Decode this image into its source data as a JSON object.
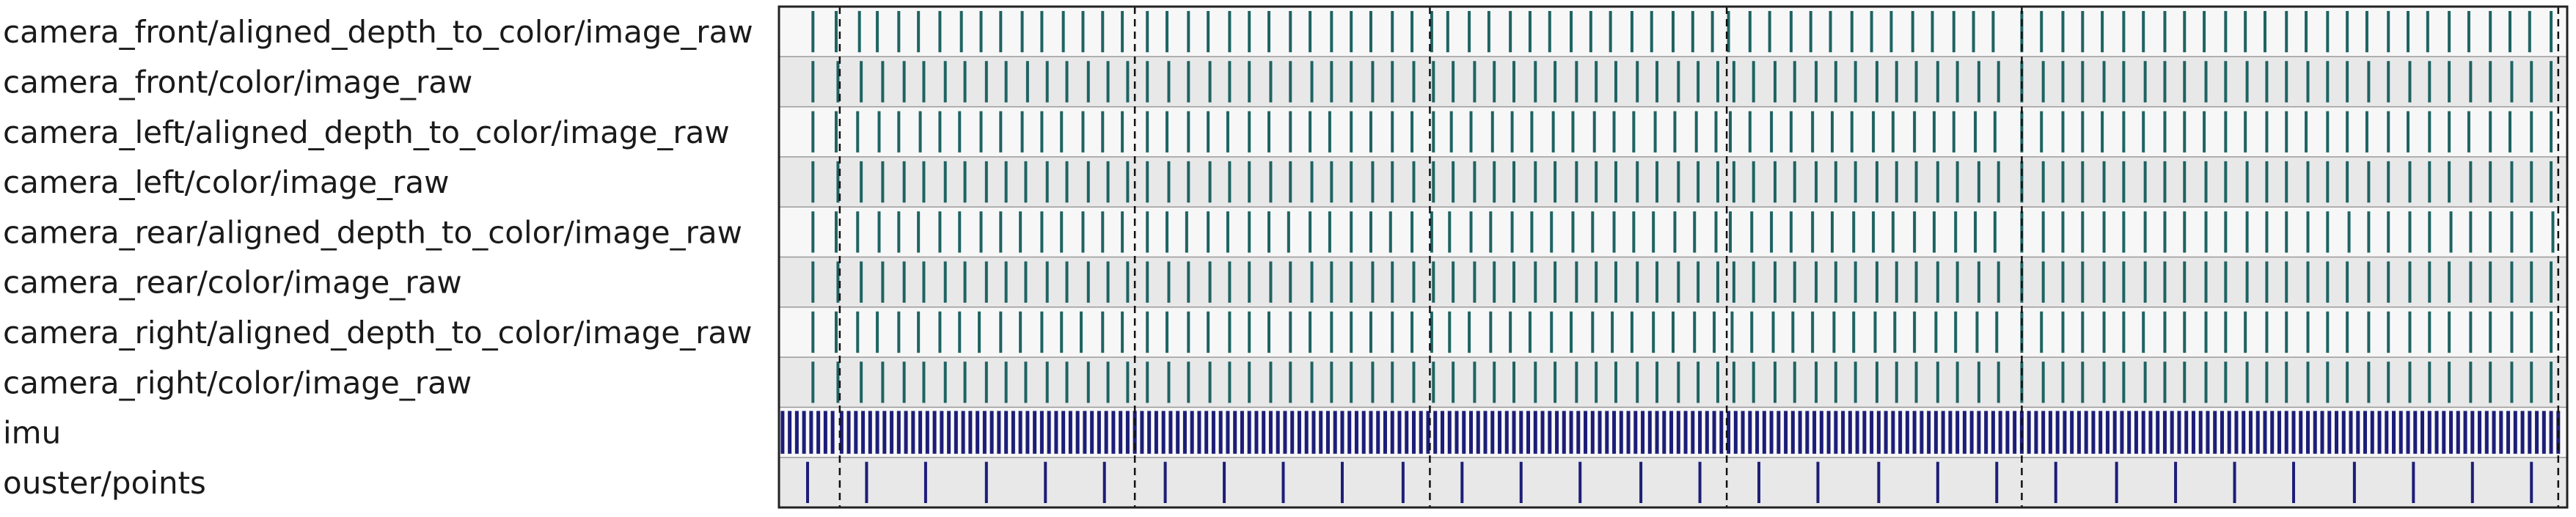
{
  "chart_data": {
    "type": "timeline",
    "title": "",
    "xlabel": "",
    "ylabel": "",
    "grid": false,
    "legend": "none",
    "colors": {
      "camera_ticks": "#1f6363",
      "imu_ticks": "#1d1d78",
      "ouster_ticks": "#1d1d78",
      "row_light": "#f7f7f7",
      "row_dark": "#e8e8e8",
      "divider": "#9a9a9a",
      "segment_line": "#111111",
      "frame": "#222222"
    },
    "x_range": [
      0,
      100
    ],
    "segment_boundaries": [
      3.4,
      19.9,
      36.4,
      53.0,
      69.5,
      99.5
    ],
    "rows": [
      {
        "label": "camera_front/aligned_depth_to_color/image_raw",
        "events": [
          1.9,
          3.2,
          4.5,
          5.5,
          6.7,
          7.8,
          9.0,
          10.2,
          11.3,
          12.4,
          13.6,
          14.7,
          15.9,
          17.0,
          18.1,
          19.2,
          20.6,
          21.7,
          22.9,
          24.0,
          25.2,
          26.3,
          27.4,
          28.6,
          29.7,
          30.9,
          32.0,
          33.1,
          34.3,
          35.4,
          36.5,
          37.4,
          38.6,
          39.7,
          40.9,
          42.0,
          43.1,
          44.3,
          45.4,
          46.5,
          47.7,
          48.8,
          50.0,
          51.1,
          52.2,
          53.1,
          54.3,
          55.4,
          56.6,
          57.7,
          58.8,
          60.0,
          61.1,
          62.2,
          63.4,
          64.5,
          65.7,
          66.8,
          67.9,
          69.5,
          70.6,
          71.8,
          72.9,
          74.0,
          75.2,
          76.3,
          77.5,
          78.6,
          79.7,
          80.9,
          82.0,
          83.1,
          84.3,
          85.4,
          86.6,
          87.7,
          88.8,
          90.0,
          91.1,
          92.2,
          93.4,
          94.5,
          95.7,
          96.8,
          97.9,
          99.1
        ]
      },
      {
        "label": "camera_front/color/image_raw",
        "events": [
          1.9,
          3.3,
          4.6,
          5.8,
          7.0,
          8.1,
          9.3,
          10.4,
          11.6,
          12.7,
          13.9,
          15.0,
          16.1,
          17.3,
          18.4,
          19.5,
          20.6,
          21.8,
          22.9,
          24.1,
          25.2,
          26.3,
          27.5,
          28.6,
          29.8,
          30.9,
          32.0,
          33.2,
          34.3,
          35.5,
          36.6,
          37.7,
          38.9,
          40.0,
          41.1,
          42.3,
          43.4,
          44.6,
          45.7,
          46.8,
          48.0,
          49.1,
          50.3,
          51.4,
          52.5,
          53.4,
          54.5,
          55.7,
          56.8,
          58.0,
          59.1,
          60.2,
          61.4,
          62.5,
          63.6,
          64.8,
          65.9,
          67.1,
          68.2,
          69.5,
          70.7,
          71.8,
          72.9,
          74.1,
          75.2,
          76.4,
          77.5,
          78.6,
          79.8,
          80.9,
          82.1,
          83.2,
          84.3,
          85.5,
          86.6,
          87.7,
          88.9,
          90.0,
          91.2,
          92.3,
          93.4,
          94.6,
          95.7,
          96.9,
          98.0,
          99.1
        ]
      },
      {
        "label": "camera_left/aligned_depth_to_color/image_raw",
        "events": [
          1.9,
          3.2,
          4.4,
          5.6,
          6.7,
          7.9,
          9.0,
          10.1,
          11.3,
          12.4,
          13.6,
          14.7,
          15.8,
          17.0,
          18.1,
          19.2,
          20.6,
          21.7,
          22.9,
          24.0,
          25.1,
          26.3,
          27.4,
          28.6,
          29.7,
          30.8,
          32.0,
          33.1,
          34.3,
          35.4,
          36.6,
          37.6,
          38.7,
          39.9,
          41.0,
          42.1,
          43.3,
          44.4,
          45.6,
          46.7,
          47.8,
          49.0,
          50.1,
          51.3,
          52.4,
          53.2,
          54.3,
          55.5,
          56.6,
          57.8,
          58.9,
          60.0,
          61.2,
          62.3,
          63.5,
          64.6,
          65.7,
          66.9,
          68.0,
          69.5,
          70.6,
          71.8,
          72.9,
          74.0,
          75.2,
          76.3,
          77.5,
          78.6,
          79.7,
          80.9,
          82.0,
          83.2,
          84.3,
          85.4,
          86.6,
          87.7,
          88.8,
          90.0,
          91.1,
          92.3,
          93.4,
          94.5,
          95.7,
          96.8,
          98.0,
          99.1
        ]
      },
      {
        "label": "camera_left/color/image_raw",
        "events": [
          1.9,
          3.3,
          4.6,
          5.8,
          7.0,
          8.1,
          9.3,
          10.4,
          11.6,
          12.7,
          13.8,
          15.0,
          16.1,
          17.3,
          18.4,
          19.5,
          20.6,
          21.8,
          22.9,
          24.1,
          25.2,
          26.3,
          27.5,
          28.6,
          29.8,
          30.9,
          32.0,
          33.2,
          34.3,
          35.5,
          36.6,
          37.7,
          38.9,
          40.0,
          41.1,
          42.3,
          43.4,
          44.6,
          45.7,
          46.8,
          48.0,
          49.1,
          50.3,
          51.4,
          52.5,
          53.4,
          54.5,
          55.7,
          56.8,
          58.0,
          59.1,
          60.2,
          61.4,
          62.5,
          63.6,
          64.8,
          65.9,
          67.1,
          68.2,
          69.5,
          70.7,
          71.8,
          72.9,
          74.1,
          75.2,
          76.4,
          77.5,
          78.6,
          79.8,
          80.9,
          82.1,
          83.2,
          84.3,
          85.5,
          86.6,
          87.7,
          88.9,
          90.0,
          91.2,
          92.3,
          93.4,
          94.6,
          95.7,
          96.9,
          98.0,
          99.1
        ]
      },
      {
        "label": "camera_rear/aligned_depth_to_color/image_raw",
        "events": [
          1.9,
          3.2,
          4.4,
          5.6,
          6.7,
          7.8,
          9.0,
          10.1,
          11.3,
          12.4,
          13.5,
          14.7,
          15.8,
          17.0,
          18.1,
          19.2,
          20.6,
          21.7,
          22.8,
          24.0,
          25.1,
          26.3,
          27.4,
          28.5,
          29.7,
          30.8,
          32.0,
          33.1,
          34.2,
          35.4,
          36.5,
          37.5,
          38.7,
          39.8,
          41.0,
          42.1,
          43.2,
          44.4,
          45.5,
          46.7,
          47.8,
          48.9,
          50.1,
          51.2,
          52.4,
          53.2,
          54.4,
          55.5,
          56.6,
          57.8,
          58.9,
          60.1,
          61.2,
          62.3,
          63.5,
          64.6,
          65.8,
          66.9,
          68.0,
          69.5,
          70.7,
          71.8,
          72.9,
          74.1,
          75.2,
          76.4,
          77.5,
          78.6,
          79.8,
          80.9,
          82.1,
          83.2,
          84.3,
          85.5,
          86.6,
          87.8,
          88.9,
          90.0,
          91.2,
          92.3,
          93.5,
          94.6,
          95.7,
          96.9,
          98.0,
          99.2
        ]
      },
      {
        "label": "camera_rear/color/image_raw",
        "events": [
          1.9,
          3.3,
          4.6,
          5.8,
          7.0,
          8.1,
          9.3,
          10.4,
          11.6,
          12.7,
          13.8,
          15.0,
          16.1,
          17.3,
          18.4,
          19.5,
          20.6,
          21.8,
          22.9,
          24.1,
          25.2,
          26.3,
          27.5,
          28.6,
          29.8,
          30.9,
          32.0,
          33.2,
          34.3,
          35.5,
          36.6,
          37.7,
          38.9,
          40.0,
          41.1,
          42.3,
          43.4,
          44.6,
          45.7,
          46.8,
          48.0,
          49.1,
          50.3,
          51.4,
          52.5,
          53.4,
          54.5,
          55.7,
          56.8,
          58.0,
          59.1,
          60.2,
          61.4,
          62.5,
          63.6,
          64.8,
          65.9,
          67.1,
          68.2,
          69.5,
          70.7,
          71.8,
          72.9,
          74.1,
          75.2,
          76.4,
          77.5,
          78.6,
          79.8,
          80.9,
          82.1,
          83.2,
          84.3,
          85.5,
          86.6,
          87.7,
          88.9,
          90.0,
          91.2,
          92.3,
          93.4,
          94.6,
          95.7,
          96.9,
          98.0,
          99.1
        ]
      },
      {
        "label": "camera_right/aligned_depth_to_color/image_raw",
        "events": [
          1.9,
          3.2,
          4.4,
          5.5,
          6.7,
          7.8,
          9.0,
          10.1,
          11.2,
          12.4,
          13.5,
          14.7,
          15.8,
          16.9,
          18.1,
          19.2,
          20.6,
          21.7,
          22.9,
          24.0,
          25.2,
          26.3,
          27.4,
          28.6,
          29.7,
          30.9,
          32.0,
          33.1,
          34.3,
          35.4,
          36.5,
          37.5,
          38.6,
          39.8,
          40.9,
          42.0,
          43.2,
          44.3,
          45.5,
          46.6,
          47.7,
          48.9,
          50.0,
          51.2,
          52.3,
          53.3,
          54.4,
          55.6,
          56.7,
          57.8,
          59.0,
          60.1,
          61.3,
          62.4,
          63.5,
          64.7,
          65.8,
          67.0,
          68.1,
          69.5,
          70.6,
          71.8,
          72.9,
          74.1,
          75.2,
          76.3,
          77.5,
          78.6,
          79.8,
          80.9,
          82.0,
          83.2,
          84.3,
          85.5,
          86.6,
          87.7,
          88.9,
          90.0,
          91.2,
          92.3,
          93.4,
          94.6,
          95.7,
          96.9,
          98.0,
          99.1
        ]
      },
      {
        "label": "camera_right/color/image_raw",
        "events": [
          1.9,
          3.3,
          4.6,
          5.8,
          7.0,
          8.1,
          9.3,
          10.4,
          11.6,
          12.7,
          13.8,
          15.0,
          16.1,
          17.3,
          18.4,
          19.5,
          20.6,
          21.8,
          22.9,
          24.1,
          25.2,
          26.3,
          27.5,
          28.6,
          29.8,
          30.9,
          32.0,
          33.2,
          34.3,
          35.5,
          36.6,
          37.7,
          38.9,
          40.0,
          41.1,
          42.3,
          43.4,
          44.6,
          45.7,
          46.8,
          48.0,
          49.1,
          50.3,
          51.4,
          52.5,
          53.4,
          54.5,
          55.7,
          56.8,
          58.0,
          59.1,
          60.2,
          61.4,
          62.5,
          63.6,
          64.8,
          65.9,
          67.1,
          68.2,
          69.5,
          70.7,
          71.8,
          72.9,
          74.1,
          75.2,
          76.4,
          77.5,
          78.6,
          79.8,
          80.9,
          82.1,
          83.2,
          84.3,
          85.5,
          86.6,
          87.7,
          88.9,
          90.0,
          91.2,
          92.3,
          93.4,
          94.6,
          95.7,
          96.9,
          98.0,
          99.1
        ]
      },
      {
        "label": "imu",
        "events": [
          0.2,
          0.6,
          1.0,
          1.4,
          1.8,
          2.2,
          2.6,
          3.0,
          3.5,
          3.9,
          4.3,
          4.7,
          5.1,
          5.5,
          5.9,
          6.3,
          6.7,
          7.1,
          7.5,
          7.9,
          8.3,
          8.7,
          9.1,
          9.5,
          9.9,
          10.3,
          10.7,
          11.1,
          11.5,
          11.9,
          12.3,
          12.7,
          13.1,
          13.5,
          13.9,
          14.3,
          14.7,
          15.1,
          15.5,
          15.9,
          16.3,
          16.7,
          17.1,
          17.5,
          17.9,
          18.3,
          18.7,
          19.1,
          19.5,
          19.9,
          20.3,
          20.7,
          21.1,
          21.5,
          21.9,
          22.3,
          22.7,
          23.1,
          23.5,
          23.9,
          24.3,
          24.7,
          25.1,
          25.5,
          25.9,
          26.3,
          26.7,
          27.1,
          27.5,
          27.9,
          28.3,
          28.7,
          29.1,
          29.5,
          29.9,
          30.3,
          30.7,
          31.1,
          31.5,
          31.9,
          32.3,
          32.7,
          33.1,
          33.5,
          33.9,
          34.3,
          34.7,
          35.1,
          35.5,
          35.9,
          36.3,
          36.7,
          37.1,
          37.5,
          37.9,
          38.3,
          38.7,
          39.1,
          39.5,
          39.9,
          40.3,
          40.7,
          41.1,
          41.5,
          41.9,
          42.3,
          42.7,
          43.1,
          43.5,
          43.9,
          44.3,
          44.7,
          45.1,
          45.5,
          45.9,
          46.3,
          46.7,
          47.1,
          47.5,
          47.9,
          48.3,
          48.7,
          49.1,
          49.5,
          49.9,
          50.3,
          50.7,
          51.1,
          51.5,
          51.9,
          52.3,
          52.7,
          53.1,
          53.5,
          53.9,
          54.3,
          54.7,
          55.1,
          55.5,
          55.9,
          56.3,
          56.7,
          57.1,
          57.5,
          57.9,
          58.3,
          58.7,
          59.1,
          59.5,
          59.9,
          60.3,
          60.7,
          61.1,
          61.5,
          61.9,
          62.3,
          62.7,
          63.1,
          63.5,
          63.9,
          64.3,
          64.7,
          65.1,
          65.5,
          65.9,
          66.3,
          66.7,
          67.1,
          67.5,
          67.9,
          68.3,
          68.7,
          69.1,
          69.5,
          69.9,
          70.3,
          70.7,
          71.1,
          71.5,
          71.9,
          72.3,
          72.7,
          73.1,
          73.5,
          73.9,
          74.3,
          74.7,
          75.1,
          75.5,
          75.9,
          76.3,
          76.7,
          77.1,
          77.5,
          77.9,
          78.3,
          78.7,
          79.1,
          79.5,
          79.9,
          80.3,
          80.7,
          81.1,
          81.5,
          81.9,
          82.3,
          82.7,
          83.1,
          83.5,
          83.9,
          84.3,
          84.7,
          85.1,
          85.5,
          85.9,
          86.3,
          86.7,
          87.1,
          87.5,
          87.9,
          88.3,
          88.7,
          89.1,
          89.5,
          89.9,
          90.3,
          90.7,
          91.1,
          91.5,
          91.9,
          92.3,
          92.7,
          93.1,
          93.5,
          93.9,
          94.3,
          94.7,
          95.1,
          95.5,
          95.9,
          96.3,
          96.7,
          97.1,
          97.5,
          97.9,
          98.3,
          98.7,
          99.1,
          99.5
        ]
      },
      {
        "label": "ouster/points",
        "events": [
          1.6,
          4.9,
          8.2,
          11.6,
          14.9,
          18.2,
          21.6,
          24.9,
          28.2,
          31.5,
          34.9,
          38.2,
          41.5,
          44.8,
          48.2,
          51.5,
          54.8,
          58.1,
          61.5,
          64.8,
          68.1,
          71.4,
          74.8,
          78.1,
          81.4,
          84.7,
          88.1,
          91.4,
          94.7,
          98.0
        ]
      }
    ]
  }
}
